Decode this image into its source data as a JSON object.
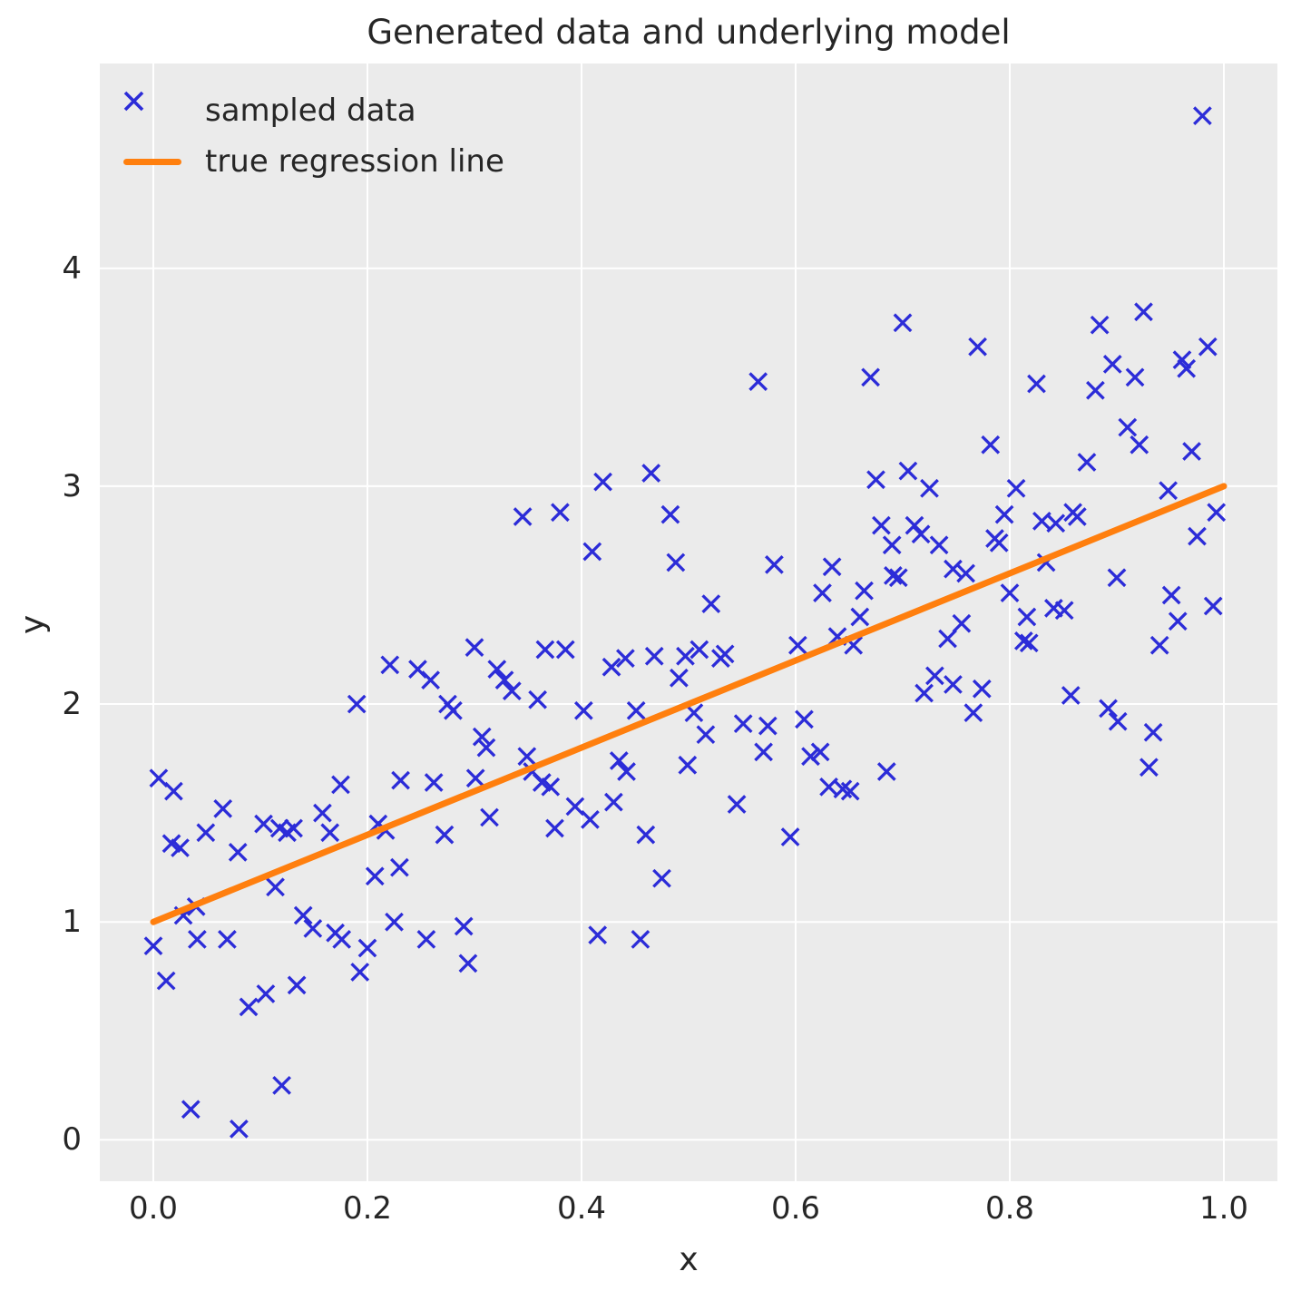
{
  "title": "Generated data and underlying model",
  "axes": {
    "xlabel": "x",
    "ylabel": "y",
    "x_tick_labels": [
      "0.0",
      "0.2",
      "0.4",
      "0.6",
      "0.8",
      "1.0"
    ],
    "y_tick_labels": [
      "0",
      "1",
      "2",
      "3",
      "4"
    ]
  },
  "legend": {
    "items": [
      {
        "label": "sampled data",
        "icon": "x-marker-icon"
      },
      {
        "label": "true regression line",
        "icon": "line-swatch-icon"
      }
    ],
    "position": "upper left",
    "frame": false
  },
  "colors": {
    "marker_blue": "#2c2cd8",
    "line_orange": "#ff7f0e",
    "axes_background": "#ebebeb",
    "grid": "#ffffff",
    "text": "#262626"
  },
  "chart_data": {
    "type": "scatter",
    "title": "Generated data and underlying model",
    "xlabel": "x",
    "ylabel": "y",
    "xlim": [
      -0.05,
      1.05
    ],
    "ylim": [
      -0.19,
      4.94
    ],
    "x_ticks": [
      0.0,
      0.2,
      0.4,
      0.6,
      0.8,
      1.0
    ],
    "y_ticks": [
      0,
      1,
      2,
      3,
      4
    ],
    "grid": true,
    "series": [
      {
        "name": "sampled data",
        "type": "scatter",
        "marker": "x",
        "color": "#2c2cd8",
        "points": [
          [
            0.0,
            0.89
          ],
          [
            0.005,
            1.66
          ],
          [
            0.012,
            0.73
          ],
          [
            0.017,
            1.36
          ],
          [
            0.019,
            1.6
          ],
          [
            0.025,
            1.34
          ],
          [
            0.028,
            1.03
          ],
          [
            0.035,
            0.14
          ],
          [
            0.04,
            1.07
          ],
          [
            0.041,
            0.92
          ],
          [
            0.049,
            1.41
          ],
          [
            0.065,
            1.52
          ],
          [
            0.069,
            0.92
          ],
          [
            0.079,
            1.32
          ],
          [
            0.08,
            0.05
          ],
          [
            0.089,
            0.61
          ],
          [
            0.103,
            1.45
          ],
          [
            0.105,
            0.67
          ],
          [
            0.114,
            1.16
          ],
          [
            0.118,
            1.43
          ],
          [
            0.12,
            0.25
          ],
          [
            0.125,
            1.41
          ],
          [
            0.131,
            1.43
          ],
          [
            0.134,
            0.71
          ],
          [
            0.14,
            1.03
          ],
          [
            0.149,
            0.97
          ],
          [
            0.158,
            1.5
          ],
          [
            0.165,
            1.41
          ],
          [
            0.17,
            0.95
          ],
          [
            0.176,
            0.92
          ],
          [
            0.175,
            1.63
          ],
          [
            0.19,
            2.0
          ],
          [
            0.193,
            0.77
          ],
          [
            0.2,
            0.88
          ],
          [
            0.207,
            1.21
          ],
          [
            0.21,
            1.45
          ],
          [
            0.217,
            1.42
          ],
          [
            0.221,
            2.18
          ],
          [
            0.225,
            1.0
          ],
          [
            0.23,
            1.25
          ],
          [
            0.231,
            1.65
          ],
          [
            0.247,
            2.16
          ],
          [
            0.255,
            0.92
          ],
          [
            0.259,
            2.11
          ],
          [
            0.262,
            1.64
          ],
          [
            0.272,
            1.4
          ],
          [
            0.275,
            2.0
          ],
          [
            0.28,
            1.97
          ],
          [
            0.29,
            0.98
          ],
          [
            0.294,
            0.81
          ],
          [
            0.3,
            2.26
          ],
          [
            0.301,
            1.66
          ],
          [
            0.307,
            1.85
          ],
          [
            0.311,
            1.8
          ],
          [
            0.314,
            1.48
          ],
          [
            0.321,
            2.16
          ],
          [
            0.328,
            2.11
          ],
          [
            0.335,
            2.06
          ],
          [
            0.345,
            2.86
          ],
          [
            0.349,
            1.76
          ],
          [
            0.354,
            1.69
          ],
          [
            0.359,
            2.02
          ],
          [
            0.363,
            1.64
          ],
          [
            0.366,
            2.25
          ],
          [
            0.371,
            1.62
          ],
          [
            0.375,
            1.43
          ],
          [
            0.38,
            2.88
          ],
          [
            0.385,
            2.25
          ],
          [
            0.394,
            1.53
          ],
          [
            0.402,
            1.97
          ],
          [
            0.408,
            1.47
          ],
          [
            0.41,
            2.7
          ],
          [
            0.415,
            0.94
          ],
          [
            0.42,
            3.02
          ],
          [
            0.428,
            2.17
          ],
          [
            0.43,
            1.55
          ],
          [
            0.435,
            1.74
          ],
          [
            0.441,
            2.21
          ],
          [
            0.442,
            1.69
          ],
          [
            0.451,
            1.97
          ],
          [
            0.455,
            0.92
          ],
          [
            0.46,
            1.4
          ],
          [
            0.465,
            3.06
          ],
          [
            0.468,
            2.22
          ],
          [
            0.475,
            1.2
          ],
          [
            0.483,
            2.87
          ],
          [
            0.488,
            2.65
          ],
          [
            0.491,
            2.12
          ],
          [
            0.497,
            2.22
          ],
          [
            0.499,
            1.72
          ],
          [
            0.505,
            1.96
          ],
          [
            0.51,
            2.25
          ],
          [
            0.516,
            1.86
          ],
          [
            0.521,
            2.46
          ],
          [
            0.53,
            2.21
          ],
          [
            0.534,
            2.23
          ],
          [
            0.545,
            1.54
          ],
          [
            0.551,
            1.91
          ],
          [
            0.565,
            3.48
          ],
          [
            0.57,
            1.78
          ],
          [
            0.574,
            1.9
          ],
          [
            0.58,
            2.64
          ],
          [
            0.595,
            1.39
          ],
          [
            0.602,
            2.27
          ],
          [
            0.608,
            1.93
          ],
          [
            0.614,
            1.76
          ],
          [
            0.623,
            1.78
          ],
          [
            0.625,
            2.51
          ],
          [
            0.631,
            1.62
          ],
          [
            0.634,
            2.63
          ],
          [
            0.639,
            2.31
          ],
          [
            0.644,
            1.61
          ],
          [
            0.651,
            1.6
          ],
          [
            0.654,
            2.27
          ],
          [
            0.66,
            2.4
          ],
          [
            0.664,
            2.52
          ],
          [
            0.67,
            3.5
          ],
          [
            0.675,
            3.03
          ],
          [
            0.68,
            2.82
          ],
          [
            0.685,
            1.69
          ],
          [
            0.69,
            2.73
          ],
          [
            0.691,
            2.59
          ],
          [
            0.696,
            2.58
          ],
          [
            0.7,
            3.75
          ],
          [
            0.705,
            3.07
          ],
          [
            0.711,
            2.82
          ],
          [
            0.717,
            2.78
          ],
          [
            0.72,
            2.05
          ],
          [
            0.725,
            2.99
          ],
          [
            0.73,
            2.13
          ],
          [
            0.734,
            2.73
          ],
          [
            0.742,
            2.3
          ],
          [
            0.747,
            2.62
          ],
          [
            0.747,
            2.09
          ],
          [
            0.755,
            2.37
          ],
          [
            0.759,
            2.6
          ],
          [
            0.766,
            1.96
          ],
          [
            0.77,
            3.64
          ],
          [
            0.774,
            2.07
          ],
          [
            0.782,
            3.19
          ],
          [
            0.786,
            2.76
          ],
          [
            0.79,
            2.74
          ],
          [
            0.795,
            2.87
          ],
          [
            0.8,
            2.51
          ],
          [
            0.806,
            2.99
          ],
          [
            0.813,
            2.29
          ],
          [
            0.818,
            2.28
          ],
          [
            0.816,
            2.4
          ],
          [
            0.825,
            3.47
          ],
          [
            0.83,
            2.84
          ],
          [
            0.834,
            2.65
          ],
          [
            0.841,
            2.44
          ],
          [
            0.843,
            2.83
          ],
          [
            0.851,
            2.43
          ],
          [
            0.857,
            2.04
          ],
          [
            0.859,
            2.88
          ],
          [
            0.863,
            2.86
          ],
          [
            0.872,
            3.11
          ],
          [
            0.88,
            3.44
          ],
          [
            0.884,
            3.74
          ],
          [
            0.892,
            1.98
          ],
          [
            0.896,
            3.56
          ],
          [
            0.9,
            2.58
          ],
          [
            0.901,
            1.92
          ],
          [
            0.91,
            3.27
          ],
          [
            0.917,
            3.5
          ],
          [
            0.921,
            3.19
          ],
          [
            0.925,
            3.8
          ],
          [
            0.93,
            1.71
          ],
          [
            0.934,
            1.87
          ],
          [
            0.94,
            2.27
          ],
          [
            0.948,
            2.98
          ],
          [
            0.951,
            2.5
          ],
          [
            0.957,
            2.38
          ],
          [
            0.961,
            3.58
          ],
          [
            0.965,
            3.54
          ],
          [
            0.97,
            3.16
          ],
          [
            0.975,
            2.77
          ],
          [
            0.98,
            4.7
          ],
          [
            0.985,
            3.64
          ],
          [
            0.99,
            2.45
          ],
          [
            0.993,
            2.88
          ]
        ]
      },
      {
        "name": "true regression line",
        "type": "line",
        "color": "#ff7f0e",
        "points": [
          [
            0.0,
            1.0
          ],
          [
            1.0,
            3.0
          ]
        ]
      }
    ]
  }
}
